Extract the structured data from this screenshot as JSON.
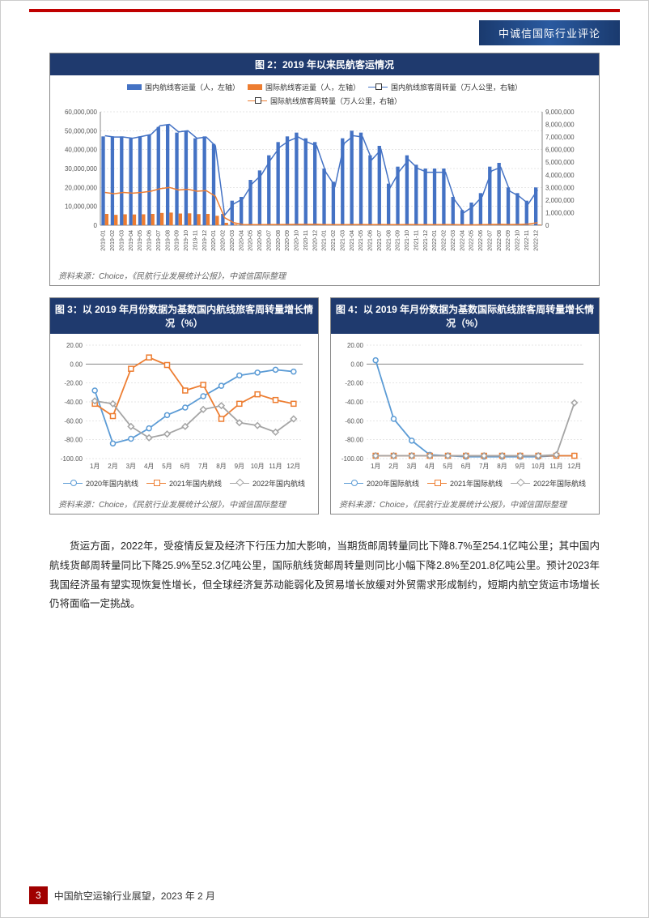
{
  "header": {
    "title": "中诚信国际行业评论"
  },
  "chart2": {
    "title": "图 2：2019 年以来民航客运情况",
    "type": "bar+line",
    "legend": [
      {
        "label": "国内航线客运量（人，左轴）",
        "style": "bar",
        "color": "#4472c4"
      },
      {
        "label": "国际航线客运量（人，左轴）",
        "style": "bar",
        "color": "#ed7d31"
      },
      {
        "label": "国内航线旅客周转量（万人公里，右轴）",
        "style": "line",
        "color": "#4472c4"
      },
      {
        "label": "国际航线旅客周转量（万人公里，右轴）",
        "style": "line",
        "color": "#ed7d31"
      }
    ],
    "categories": [
      "2019-01",
      "2019-02",
      "2019-03",
      "2019-04",
      "2019-05",
      "2019-06",
      "2019-07",
      "2019-08",
      "2019-09",
      "2019-10",
      "2019-11",
      "2019-12",
      "2020-01",
      "2020-02",
      "2020-03",
      "2020-04",
      "2020-05",
      "2020-06",
      "2020-07",
      "2020-08",
      "2020-09",
      "2020-10",
      "2020-11",
      "2020-12",
      "2021-01",
      "2021-02",
      "2021-03",
      "2021-04",
      "2021-05",
      "2021-06",
      "2021-07",
      "2021-08",
      "2021-09",
      "2021-10",
      "2021-11",
      "2021-12",
      "2022-01",
      "2022-02",
      "2022-03",
      "2022-04",
      "2022-05",
      "2022-06",
      "2022-07",
      "2022-08",
      "2022-09",
      "2022-10",
      "2022-11",
      "2022-12"
    ],
    "left_axis": {
      "min": 0,
      "max": 60000000,
      "step": 10000000,
      "format": "comma"
    },
    "right_axis": {
      "min": 0,
      "max": 9000000,
      "step": 1000000,
      "format": "comma"
    },
    "bar_domestic": [
      47000000,
      47000000,
      47000000,
      46000000,
      47000000,
      48000000,
      52000000,
      53000000,
      49000000,
      50000000,
      46000000,
      47000000,
      43000000,
      6000000,
      13000000,
      15000000,
      24000000,
      29000000,
      37000000,
      44000000,
      47000000,
      49000000,
      46000000,
      44000000,
      30000000,
      23000000,
      46000000,
      50000000,
      49000000,
      37000000,
      42000000,
      22000000,
      31000000,
      37000000,
      32000000,
      30000000,
      30000000,
      30000000,
      15000000,
      8000000,
      12000000,
      17000000,
      31000000,
      33000000,
      20000000,
      17000000,
      13000000,
      20000000
    ],
    "bar_intl": [
      6000000,
      5500000,
      5800000,
      5700000,
      5800000,
      6000000,
      6500000,
      6700000,
      6200000,
      6300000,
      5900000,
      6000000,
      5000000,
      1300000,
      500000,
      120000,
      100000,
      100000,
      110000,
      120000,
      130000,
      140000,
      150000,
      160000,
      100000,
      90000,
      100000,
      110000,
      110000,
      100000,
      110000,
      90000,
      100000,
      110000,
      100000,
      100000,
      100000,
      110000,
      90000,
      60000,
      70000,
      90000,
      130000,
      140000,
      120000,
      130000,
      200000,
      400000
    ],
    "line_domestic_turnover": [
      7100000,
      7000000,
      7000000,
      6900000,
      7050000,
      7200000,
      7900000,
      8000000,
      7400000,
      7500000,
      6900000,
      7000000,
      6300000,
      800000,
      1700000,
      2100000,
      3300000,
      4000000,
      5200000,
      6200000,
      6700000,
      7000000,
      6600000,
      6300000,
      4200000,
      3100000,
      6500000,
      7100000,
      7000000,
      5200000,
      6000000,
      3000000,
      4300000,
      5200000,
      4500000,
      4200000,
      4200000,
      4200000,
      2000000,
      1000000,
      1500000,
      2300000,
      4300000,
      4600000,
      2700000,
      2300000,
      1700000,
      2800000
    ],
    "line_intl_turnover": [
      2600000,
      2500000,
      2600000,
      2550000,
      2600000,
      2700000,
      2900000,
      3000000,
      2800000,
      2850000,
      2700000,
      2750000,
      2300000,
      600000,
      200000,
      60000,
      50000,
      50000,
      55000,
      60000,
      65000,
      70000,
      75000,
      80000,
      50000,
      45000,
      50000,
      55000,
      55000,
      50000,
      55000,
      45000,
      50000,
      55000,
      50000,
      50000,
      50000,
      55000,
      45000,
      30000,
      35000,
      45000,
      65000,
      70000,
      60000,
      65000,
      100000,
      200000
    ],
    "source": "资料来源：Choice，《民航行业发展统计公报》，中诚信国际整理",
    "bar_width": 0.38,
    "colors": {
      "dom_bar": "#4472c4",
      "intl_bar": "#ed7d31",
      "dom_line": "#4472c4",
      "intl_line": "#ed7d31",
      "grid": "#cccccc",
      "bg": "#ffffff"
    }
  },
  "chart3": {
    "title": "图 3：以 2019 年月份数据为基数国内航线旅客周转量增长情况（%）",
    "type": "line",
    "categories": [
      "1月",
      "2月",
      "3月",
      "4月",
      "5月",
      "6月",
      "7月",
      "8月",
      "9月",
      "10月",
      "11月",
      "12月"
    ],
    "ylim": [
      -100,
      20
    ],
    "ystep": 20,
    "series": [
      {
        "name": "2020年国内航线",
        "color": "#5b9bd5",
        "marker": "circle",
        "values": [
          -28,
          -84,
          -79,
          -68,
          -54,
          -46,
          -34,
          -23,
          -12,
          -9,
          -6,
          -8
        ]
      },
      {
        "name": "2021年国内航线",
        "color": "#ed7d31",
        "marker": "square",
        "values": [
          -42,
          -55,
          -5,
          7,
          -1,
          -28,
          -22,
          -58,
          -42,
          -32,
          -38,
          -42
        ]
      },
      {
        "name": "2022年国内航线",
        "color": "#a5a5a5",
        "marker": "diamond",
        "values": [
          -39,
          -42,
          -66,
          -78,
          -74,
          -66,
          -48,
          -44,
          -62,
          -65,
          -72,
          -58
        ]
      }
    ],
    "source": "资料来源：Choice，《民航行业发展统计公报》，中诚信国际整理"
  },
  "chart4": {
    "title": "图 4：以 2019 年月份数据为基数国际航线旅客周转量增长情况（%）",
    "type": "line",
    "categories": [
      "1月",
      "2月",
      "3月",
      "4月",
      "5月",
      "6月",
      "7月",
      "8月",
      "9月",
      "10月",
      "11月",
      "12月"
    ],
    "ylim": [
      -100,
      20
    ],
    "ystep": 20,
    "series": [
      {
        "name": "2020年国际航线",
        "color": "#5b9bd5",
        "marker": "circle",
        "values": [
          4,
          -58,
          -81,
          -96,
          -97,
          -98,
          -98,
          -98,
          -98,
          -98,
          -97,
          -97
        ]
      },
      {
        "name": "2021年国际航线",
        "color": "#ed7d31",
        "marker": "square",
        "values": [
          -97,
          -97,
          -97,
          -97,
          -97,
          -97,
          -97,
          -97,
          -97,
          -97,
          -97,
          -97
        ]
      },
      {
        "name": "2022年国际航线",
        "color": "#a5a5a5",
        "marker": "diamond",
        "values": [
          -97,
          -97,
          -97,
          -97,
          -97,
          -97,
          -97,
          -97,
          -97,
          -97,
          -96,
          -41
        ]
      }
    ],
    "source": "资料来源：Choice，《民航行业发展统计公报》，中诚信国际整理"
  },
  "bodytext": "货运方面，2022年，受疫情反复及经济下行压力加大影响，当期货邮周转量同比下降8.7%至254.1亿吨公里；其中国内航线货邮周转量同比下降25.9%至52.3亿吨公里，国际航线货邮周转量则同比小幅下降2.8%至201.8亿吨公里。预计2023年我国经济虽有望实现恢复性增长，但全球经济复苏动能弱化及贸易增长放缓对外贸需求形成制约，短期内航空货运市场增长仍将面临一定挑战。",
  "footer": {
    "page": "3",
    "title": "中国航空运输行业展望，2023 年 2 月"
  }
}
